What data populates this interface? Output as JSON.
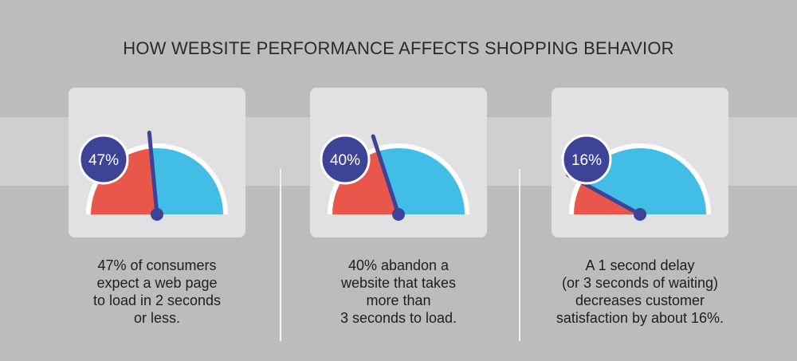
{
  "title": "HOW WEBSITE PERFORMANCE AFFECTS SHOPPING BEHAVIOR",
  "colors": {
    "red": "#e8574a",
    "blue": "#41bde6",
    "navy": "#3d4498",
    "card": "#e1e1e3"
  },
  "gauges": [
    {
      "percent_label": "47%",
      "value": 47,
      "caption": [
        "47% of consumers",
        "expect a web page",
        "to load in 2 seconds",
        "or less."
      ]
    },
    {
      "percent_label": "40%",
      "value": 40,
      "caption": [
        "40% abandon a",
        "website that takes",
        "more than",
        "3 seconds to load."
      ]
    },
    {
      "percent_label": "16%",
      "value": 16,
      "caption": [
        "A 1 second delay",
        "(or 3 seconds of waiting)",
        "decreases customer",
        "satisfaction by about 16%."
      ]
    }
  ]
}
